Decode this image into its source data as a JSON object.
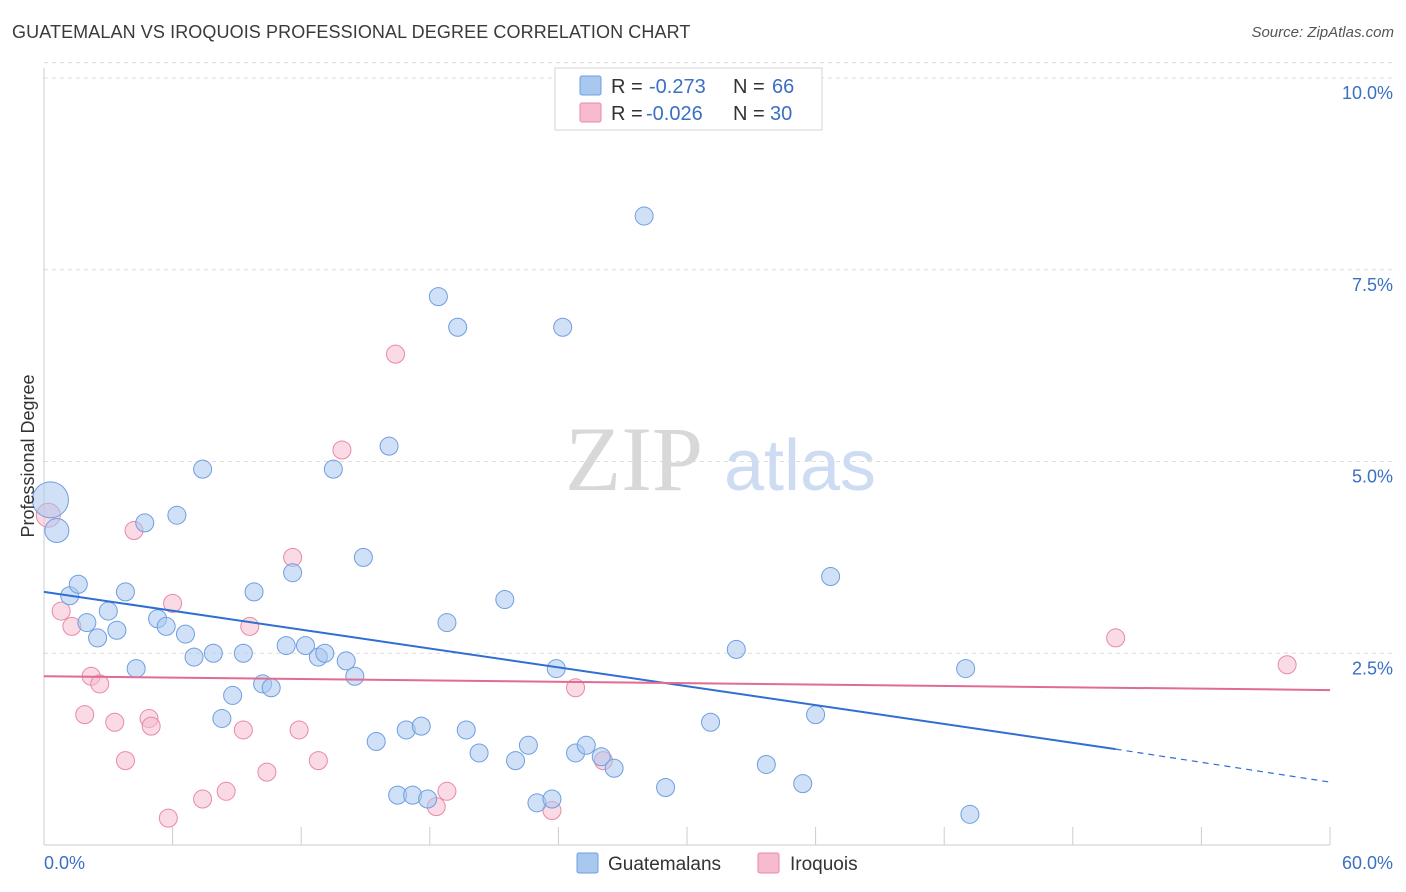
{
  "header": {
    "title": "GUATEMALAN VS IROQUOIS PROFESSIONAL DEGREE CORRELATION CHART",
    "source": "Source: ZipAtlas.com"
  },
  "watermark": {
    "zip": "ZIP",
    "atlas": "atlas"
  },
  "legend": {
    "r_label": "R =",
    "n_label": "N =",
    "rows": [
      {
        "r": "-0.273",
        "n": "66",
        "color": "#a9c8f0",
        "edge": "#6f9ee0"
      },
      {
        "r": "-0.026",
        "n": "30",
        "color": "#f6bccd",
        "edge": "#e88aa7"
      }
    ]
  },
  "chart_data": {
    "type": "scatter",
    "title": "GUATEMALAN VS IROQUOIS PROFESSIONAL DEGREE CORRELATION CHART",
    "ylabel": "Professional Degree",
    "xlabel": "",
    "xlim": [
      0,
      60
    ],
    "ylim": [
      0,
      10
    ],
    "x_tick_labels": [
      "0.0%",
      "60.0%"
    ],
    "y_ticks": [
      2.5,
      5.0,
      7.5,
      10.0
    ],
    "y_tick_labels": [
      "2.5%",
      "5.0%",
      "7.5%",
      "10.0%"
    ],
    "grid": true,
    "legend_position": "top-center",
    "series": [
      {
        "name": "Guatemalans",
        "color": "#a9c8f0",
        "edge": "#6f9ee0",
        "line_color": "#2e6fd0",
        "trend": {
          "x0": 0,
          "y0": 3.3,
          "x1": 50,
          "y1": 1.25,
          "dash_to_x": 60,
          "dash_to_y": 0.82
        },
        "points": [
          [
            0.3,
            4.5,
            18
          ],
          [
            0.6,
            4.1,
            12
          ],
          [
            1.2,
            3.25,
            9
          ],
          [
            1.6,
            3.4,
            9
          ],
          [
            2.0,
            2.9,
            9
          ],
          [
            2.5,
            2.7,
            9
          ],
          [
            3.0,
            3.05,
            9
          ],
          [
            3.4,
            2.8,
            9
          ],
          [
            3.8,
            3.3,
            9
          ],
          [
            4.3,
            2.3,
            9
          ],
          [
            4.7,
            4.2,
            9
          ],
          [
            5.3,
            2.95,
            9
          ],
          [
            5.7,
            2.85,
            9
          ],
          [
            6.2,
            4.3,
            9
          ],
          [
            6.6,
            2.75,
            9
          ],
          [
            7.0,
            2.45,
            9
          ],
          [
            7.4,
            4.9,
            9
          ],
          [
            7.9,
            2.5,
            9
          ],
          [
            8.3,
            1.65,
            9
          ],
          [
            8.8,
            1.95,
            9
          ],
          [
            9.3,
            2.5,
            9
          ],
          [
            9.8,
            3.3,
            9
          ],
          [
            10.2,
            2.1,
            9
          ],
          [
            10.6,
            2.05,
            9
          ],
          [
            11.3,
            2.6,
            9
          ],
          [
            11.6,
            3.55,
            9
          ],
          [
            12.2,
            2.6,
            9
          ],
          [
            12.8,
            2.45,
            9
          ],
          [
            13.1,
            2.5,
            9
          ],
          [
            13.5,
            4.9,
            9
          ],
          [
            14.1,
            2.4,
            9
          ],
          [
            14.5,
            2.2,
            9
          ],
          [
            14.9,
            3.75,
            9
          ],
          [
            15.5,
            1.35,
            9
          ],
          [
            16.1,
            5.2,
            9
          ],
          [
            16.5,
            0.65,
            9
          ],
          [
            16.9,
            1.5,
            9
          ],
          [
            17.2,
            0.65,
            9
          ],
          [
            17.6,
            1.55,
            9
          ],
          [
            17.9,
            0.6,
            9
          ],
          [
            18.4,
            7.15,
            9
          ],
          [
            18.8,
            2.9,
            9
          ],
          [
            19.3,
            6.75,
            9
          ],
          [
            19.7,
            1.5,
            9
          ],
          [
            20.3,
            1.2,
            9
          ],
          [
            21.5,
            3.2,
            9
          ],
          [
            22.0,
            1.1,
            9
          ],
          [
            22.6,
            1.3,
            9
          ],
          [
            23.0,
            0.55,
            9
          ],
          [
            23.7,
            0.6,
            9
          ],
          [
            23.9,
            2.3,
            9
          ],
          [
            24.2,
            6.75,
            9
          ],
          [
            24.8,
            1.2,
            9
          ],
          [
            25.3,
            1.3,
            9
          ],
          [
            26.0,
            1.15,
            9
          ],
          [
            26.6,
            1.0,
            9
          ],
          [
            28.0,
            8.2,
            9
          ],
          [
            29.0,
            0.75,
            9
          ],
          [
            31.1,
            1.6,
            9
          ],
          [
            32.3,
            2.55,
            9
          ],
          [
            33.7,
            1.05,
            9
          ],
          [
            35.4,
            0.8,
            9
          ],
          [
            36.0,
            1.7,
            9
          ],
          [
            36.7,
            3.5,
            9
          ],
          [
            43.0,
            2.3,
            9
          ],
          [
            43.2,
            0.4,
            9
          ]
        ]
      },
      {
        "name": "Iroquois",
        "color": "#f6bccd",
        "edge": "#e88aa7",
        "line_color": "#e06b93",
        "trend": {
          "x0": 0,
          "y0": 2.2,
          "x1": 60,
          "y1": 2.02
        },
        "points": [
          [
            0.2,
            4.3,
            12
          ],
          [
            0.8,
            3.05,
            9
          ],
          [
            1.3,
            2.85,
            9
          ],
          [
            1.9,
            1.7,
            9
          ],
          [
            2.2,
            2.2,
            9
          ],
          [
            2.6,
            2.1,
            9
          ],
          [
            3.3,
            1.6,
            9
          ],
          [
            3.8,
            1.1,
            9
          ],
          [
            4.2,
            4.1,
            9
          ],
          [
            4.9,
            1.65,
            9
          ],
          [
            5.0,
            1.55,
            9
          ],
          [
            5.8,
            0.35,
            9
          ],
          [
            6.0,
            3.15,
            9
          ],
          [
            7.4,
            0.6,
            9
          ],
          [
            8.5,
            0.7,
            9
          ],
          [
            9.3,
            1.5,
            9
          ],
          [
            9.6,
            2.85,
            9
          ],
          [
            10.4,
            0.95,
            9
          ],
          [
            11.6,
            3.75,
            9
          ],
          [
            11.9,
            1.5,
            9
          ],
          [
            12.8,
            1.1,
            9
          ],
          [
            13.9,
            5.15,
            9
          ],
          [
            16.4,
            6.4,
            9
          ],
          [
            18.3,
            0.5,
            9
          ],
          [
            18.8,
            0.7,
            9
          ],
          [
            23.7,
            0.45,
            9
          ],
          [
            24.8,
            2.05,
            9
          ],
          [
            26.1,
            1.1,
            9
          ],
          [
            50.0,
            2.7,
            9
          ],
          [
            58.0,
            2.35,
            9
          ]
        ]
      }
    ]
  }
}
